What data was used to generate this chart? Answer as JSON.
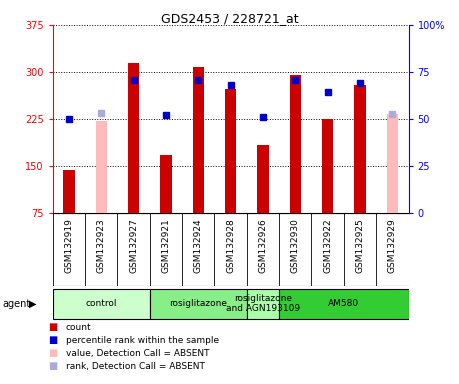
{
  "title": "GDS2453 / 228721_at",
  "samples": [
    "GSM132919",
    "GSM132923",
    "GSM132927",
    "GSM132921",
    "GSM132924",
    "GSM132928",
    "GSM132926",
    "GSM132930",
    "GSM132922",
    "GSM132925",
    "GSM132929"
  ],
  "count_values": [
    143,
    null,
    315,
    168,
    308,
    273,
    183,
    295,
    225,
    280,
    null
  ],
  "count_absent": [
    null,
    222,
    null,
    null,
    null,
    null,
    null,
    null,
    null,
    null,
    233
  ],
  "rank_values": [
    225,
    null,
    287,
    232,
    287,
    280,
    228,
    287,
    268,
    283,
    null
  ],
  "rank_absent": [
    null,
    235,
    null,
    null,
    null,
    null,
    null,
    null,
    null,
    null,
    233
  ],
  "ylim_left": [
    75,
    375
  ],
  "ylim_right": [
    0,
    100
  ],
  "yticks_left": [
    75,
    150,
    225,
    300,
    375
  ],
  "yticks_right": [
    0,
    25,
    50,
    75,
    100
  ],
  "groups": [
    {
      "label": "control",
      "start": 0,
      "end": 3,
      "color": "#ccffcc"
    },
    {
      "label": "rosiglitazone",
      "start": 3,
      "end": 6,
      "color": "#88ee88"
    },
    {
      "label": "rosiglitazone\nand AGN193109",
      "start": 6,
      "end": 7,
      "color": "#aaffaa"
    },
    {
      "label": "AM580",
      "start": 7,
      "end": 11,
      "color": "#33cc33"
    }
  ],
  "bar_color_red": "#cc0000",
  "bar_color_pink": "#ffbbbb",
  "dot_color_blue": "#0000cc",
  "dot_color_lightblue": "#aaaadd",
  "bar_width": 0.35,
  "bg_color": "#ffffff",
  "plot_bg_color": "#ffffff",
  "tick_area_bg": "#cccccc"
}
